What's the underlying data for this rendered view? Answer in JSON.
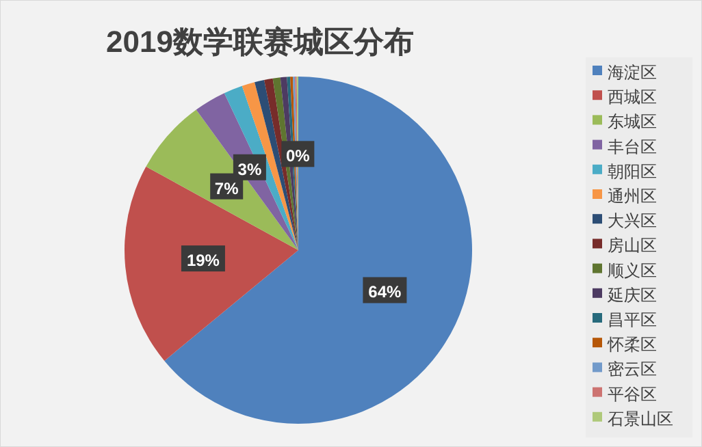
{
  "chart_data": {
    "type": "pie",
    "title": "2019数学联赛城区分布",
    "categories": [
      "海淀区",
      "西城区",
      "东城区",
      "丰台区",
      "朝阳区",
      "通州区",
      "大兴区",
      "房山区",
      "顺义区",
      "延庆区",
      "昌平区",
      "怀柔区",
      "密云区",
      "平谷区",
      "石景山区"
    ],
    "values": [
      64,
      19,
      7,
      3,
      1.75,
      1.2,
      0.9,
      0.8,
      0.7,
      0.6,
      0.3,
      0.25,
      0.2,
      0.15,
      0.15
    ],
    "colors": [
      "#4f81bd",
      "#c0504d",
      "#9bbb59",
      "#8064a2",
      "#4bacc6",
      "#f79646",
      "#2c4d75",
      "#772c2a",
      "#5f7530",
      "#4d3b62",
      "#276a7c",
      "#b65708",
      "#729aca",
      "#cd7371",
      "#afc97a"
    ],
    "value_labels": [
      "64%",
      "19%",
      "7%",
      "3%",
      null,
      null,
      null,
      null,
      null,
      null,
      null,
      null,
      null,
      null,
      "0%"
    ],
    "legend": "right"
  }
}
